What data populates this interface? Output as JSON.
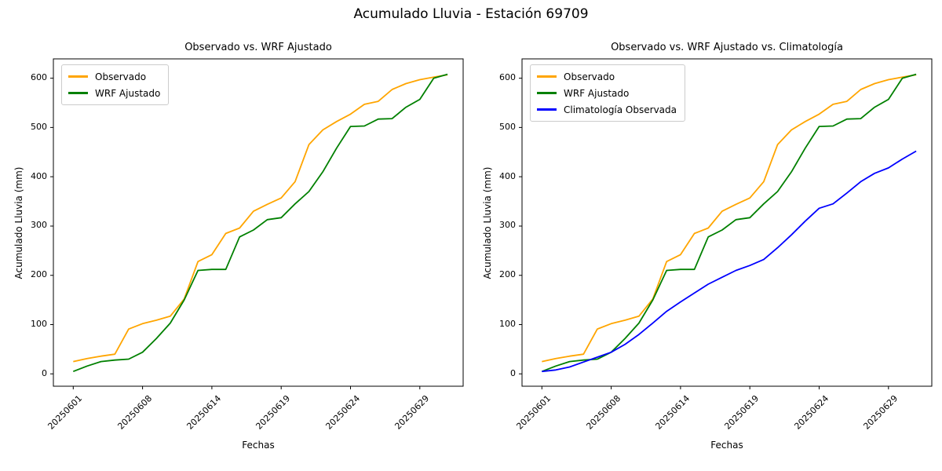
{
  "figure_title": "Acumulado Lluvia - Estación 69709",
  "colors": {
    "observado": "#FFA500",
    "wrf_ajustado": "#008000",
    "climatologia": "#0000FF",
    "spine": "#000000",
    "legend_border": "#cccccc"
  },
  "chart_data": [
    {
      "type": "line",
      "title": "Observado vs. WRF Ajustado",
      "xlabel": "Fechas",
      "ylabel": "Acumulado Lluvia (mm)",
      "ylim": [
        -25,
        640
      ],
      "yticks": [
        0,
        100,
        200,
        300,
        400,
        500,
        600
      ],
      "xtick_labels": [
        "20250601",
        "20250608",
        "20250614",
        "20250619",
        "20250624",
        "20250629"
      ],
      "xtick_indices": [
        0,
        5,
        10,
        15,
        20,
        25
      ],
      "legend_position": "upper left",
      "grid": false,
      "series": [
        {
          "name": "Observado",
          "color": "#FFA500",
          "values": [
            25,
            31,
            36,
            40,
            91,
            102,
            109,
            117,
            152,
            228,
            242,
            285,
            296,
            330,
            344,
            357,
            390,
            465,
            495,
            512,
            527,
            547,
            553,
            577,
            589,
            597,
            602,
            607
          ]
        },
        {
          "name": "WRF Ajustado",
          "color": "#008000",
          "values": [
            5,
            16,
            25,
            28,
            30,
            44,
            72,
            103,
            150,
            210,
            212,
            212,
            278,
            292,
            313,
            317,
            345,
            370,
            410,
            458,
            502,
            503,
            517,
            518,
            541,
            557,
            600,
            608
          ]
        }
      ]
    },
    {
      "type": "line",
      "title": "Observado vs. WRF Ajustado vs. Climatología",
      "xlabel": "Fechas",
      "ylabel": "Acumulado Lluvia (mm)",
      "ylim": [
        -25,
        640
      ],
      "yticks": [
        0,
        100,
        200,
        300,
        400,
        500,
        600
      ],
      "xtick_labels": [
        "20250601",
        "20250608",
        "20250614",
        "20250619",
        "20250624",
        "20250629"
      ],
      "xtick_indices": [
        0,
        5,
        10,
        15,
        20,
        25
      ],
      "legend_position": "upper left",
      "grid": false,
      "series": [
        {
          "name": "Observado",
          "color": "#FFA500",
          "values": [
            25,
            31,
            36,
            40,
            91,
            102,
            109,
            117,
            152,
            228,
            242,
            285,
            296,
            330,
            344,
            357,
            390,
            465,
            495,
            512,
            527,
            547,
            553,
            577,
            589,
            597,
            602,
            607
          ]
        },
        {
          "name": "WRF Ajustado",
          "color": "#008000",
          "values": [
            5,
            16,
            25,
            28,
            30,
            44,
            72,
            103,
            150,
            210,
            212,
            212,
            278,
            292,
            313,
            317,
            345,
            370,
            410,
            458,
            502,
            503,
            517,
            518,
            541,
            557,
            600,
            608
          ]
        },
        {
          "name": "Climatología Observada",
          "color": "#0000FF",
          "values": [
            5,
            8,
            14,
            24,
            34,
            44,
            60,
            80,
            103,
            127,
            146,
            164,
            182,
            196,
            210,
            220,
            232,
            256,
            282,
            310,
            336,
            345,
            367,
            390,
            407,
            418,
            436,
            452
          ]
        }
      ]
    }
  ]
}
